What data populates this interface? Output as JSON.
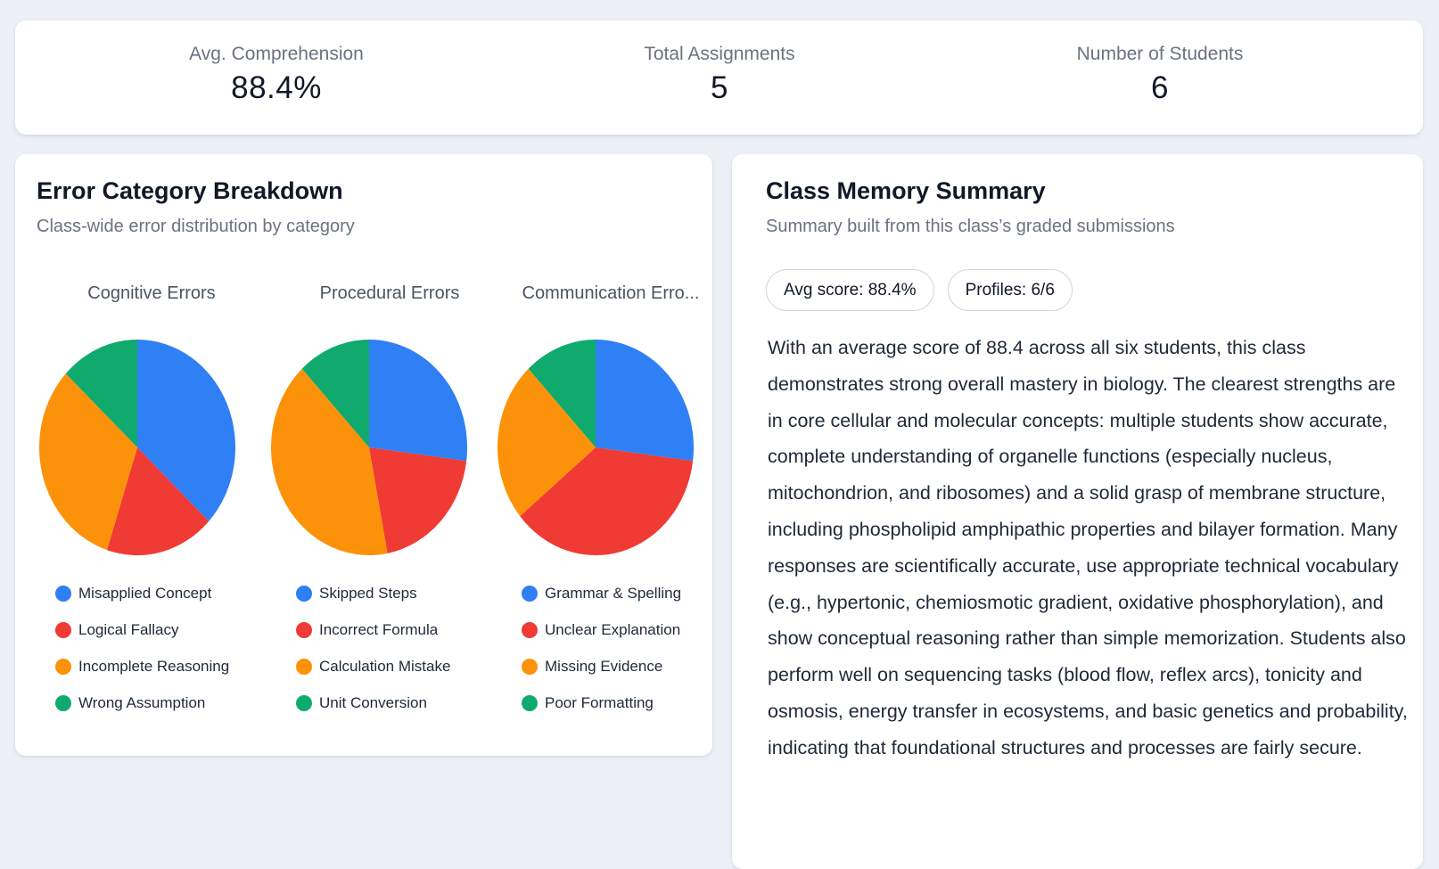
{
  "stats": [
    {
      "label": "Avg. Comprehension",
      "value": "88.4%"
    },
    {
      "label": "Total Assignments",
      "value": "5"
    },
    {
      "label": "Number of Students",
      "value": "6"
    }
  ],
  "error_breakdown": {
    "title": "Error Category Breakdown",
    "subtitle": "Class-wide error distribution by category"
  },
  "colors": {
    "blue": "#2f7ff5",
    "red": "#f03a34",
    "orange": "#fb9209",
    "green": "#10aa6e"
  },
  "chart_data": [
    {
      "type": "pie",
      "title": "Cognitive Errors",
      "labels": [
        "Misapplied Concept",
        "Logical Fallacy",
        "Incomplete Reasoning",
        "Wrong Assumption"
      ],
      "values": [
        37,
        18,
        32,
        13
      ],
      "colors": [
        "#2f7ff5",
        "#f03a34",
        "#fb9209",
        "#10aa6e"
      ],
      "legend": "bottom"
    },
    {
      "type": "pie",
      "title": "Procedural Errors",
      "labels": [
        "Skipped Steps",
        "Incorrect Formula",
        "Calculation Mistake",
        "Unit Conversion"
      ],
      "values": [
        27,
        20,
        41,
        12
      ],
      "colors": [
        "#2f7ff5",
        "#f03a34",
        "#fb9209",
        "#10aa6e"
      ],
      "legend": "bottom"
    },
    {
      "type": "pie",
      "title": "Communication Erro...",
      "labels": [
        "Grammar & Spelling",
        "Unclear Explanation",
        "Missing Evidence",
        "Poor Formatting"
      ],
      "values": [
        27,
        37,
        24,
        12
      ],
      "colors": [
        "#2f7ff5",
        "#f03a34",
        "#fb9209",
        "#10aa6e"
      ],
      "legend": "bottom"
    }
  ],
  "memory": {
    "title": "Class Memory Summary",
    "subtitle": "Summary built from this class’s graded submissions",
    "pills": [
      "Avg score: 88.4%",
      "Profiles: 6/6"
    ],
    "summary": "With an average score of 88.4 across all six students, this class demonstrates strong overall mastery in biology. The clearest strengths are in core cellular and molecular concepts: multiple students show accurate, complete understanding of organelle functions (especially nucleus, mitochondrion, and ribosomes) and a solid grasp of membrane structure, including phospholipid amphipathic properties and bilayer formation. Many responses are scientifically accurate, use appropriate technical vocabulary (e.g., hypertonic, chemiosmotic gradient, oxidative phosphorylation), and show conceptual reasoning rather than simple memorization. Students also perform well on sequencing tasks (blood flow, reflex arcs), tonicity and osmosis, energy transfer in ecosystems, and basic genetics and probability, indicating that foundational structures and processes are fairly secure."
  }
}
